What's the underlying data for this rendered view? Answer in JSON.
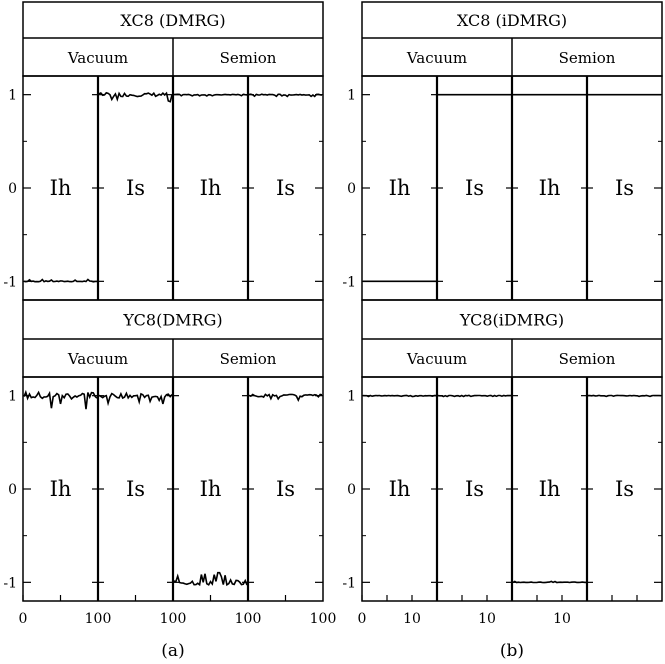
{
  "figure": {
    "panel_labels": [
      "(a)",
      "(b)"
    ]
  },
  "chart_data": [
    {
      "type": "line",
      "title": "XC8 (DMRG)",
      "column": "a",
      "sectors": [
        "Vacuum",
        "Semion"
      ],
      "regions": [
        "Ih",
        "Is",
        "Ih",
        "Is"
      ],
      "x_ticks": [
        "0",
        "100",
        "100",
        "100",
        "100"
      ],
      "x_per_region": [
        0,
        100
      ],
      "y_ticks": [
        "1",
        "0",
        "-1"
      ],
      "ylim": [
        -1.2,
        1.2
      ],
      "region_values": [
        -1,
        1,
        1,
        1
      ],
      "region_noise": [
        0.01,
        0.04,
        0.008,
        0.01
      ]
    },
    {
      "type": "line",
      "title": "XC8 (iDMRG)",
      "column": "b",
      "sectors": [
        "Vacuum",
        "Semion"
      ],
      "regions": [
        "Ih",
        "Is",
        "Ih",
        "Is"
      ],
      "x_ticks": [
        "0",
        "10",
        "10",
        "10"
      ],
      "x_per_region": [
        0,
        15
      ],
      "y_ticks": [
        "1",
        "0",
        "-1"
      ],
      "ylim": [
        -1.2,
        1.2
      ],
      "region_values": [
        -1,
        1,
        1,
        1
      ],
      "region_noise": [
        0,
        0,
        0,
        0
      ]
    },
    {
      "type": "line",
      "title": "YC8(DMRG)",
      "column": "a",
      "sectors": [
        "Vacuum",
        "Semion"
      ],
      "regions": [
        "Ih",
        "Is",
        "Ih",
        "Is"
      ],
      "x_ticks": [
        "0",
        "100",
        "100",
        "100",
        "100"
      ],
      "x_per_region": [
        0,
        100
      ],
      "y_ticks": [
        "1",
        "0",
        "-1"
      ],
      "ylim": [
        -1.2,
        1.2
      ],
      "region_values": [
        1,
        1,
        -1,
        1
      ],
      "region_noise": [
        0.08,
        0.05,
        0.06,
        0.03
      ]
    },
    {
      "type": "line",
      "title": "YC8(iDMRG)",
      "column": "b",
      "sectors": [
        "Vacuum",
        "Semion"
      ],
      "regions": [
        "Ih",
        "Is",
        "Ih",
        "Is"
      ],
      "x_ticks": [
        "0",
        "10",
        "10",
        "10"
      ],
      "x_per_region": [
        0,
        15
      ],
      "y_ticks": [
        "1",
        "0",
        "-1"
      ],
      "ylim": [
        -1.2,
        1.2
      ],
      "region_values": [
        1,
        1,
        -1,
        1
      ],
      "region_noise": [
        0.005,
        0.005,
        0.005,
        0.005
      ]
    }
  ]
}
